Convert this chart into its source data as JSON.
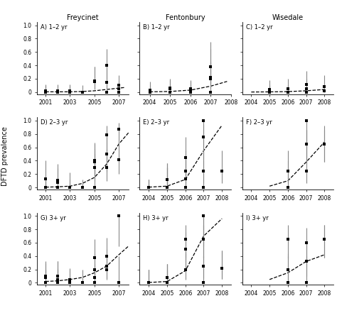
{
  "col_titles": [
    "Freycinet",
    "Fentonbury",
    "Wisedale"
  ],
  "ylabel": "DFTD prevalence",
  "subplots": {
    "A": {
      "points": [
        [
          2001,
          0.02,
          0.0,
          0.12
        ],
        [
          2001,
          0.0,
          0.0,
          0.1
        ],
        [
          2001,
          0.0,
          0.0,
          0.1
        ],
        [
          2002,
          0.02,
          0.0,
          0.12
        ],
        [
          2002,
          0.0,
          0.0,
          0.1
        ],
        [
          2003,
          0.0,
          0.0,
          0.1
        ],
        [
          2003,
          0.02,
          0.0,
          0.12
        ],
        [
          2004,
          0.0,
          0.0,
          0.1
        ],
        [
          2005,
          0.17,
          0.05,
          0.38
        ],
        [
          2005,
          0.16,
          0.04,
          0.38
        ],
        [
          2006,
          0.15,
          0.04,
          0.35
        ],
        [
          2006,
          0.0,
          0.0,
          0.1
        ],
        [
          2006,
          0.4,
          0.18,
          0.65
        ],
        [
          2007,
          0.1,
          0.02,
          0.25
        ],
        [
          2007,
          0.05,
          0.01,
          0.16
        ],
        [
          2007,
          0.0,
          0.0,
          0.1
        ]
      ],
      "fit_x": [
        2001,
        2002,
        2003,
        2004,
        2005,
        2006,
        2007,
        2007.5
      ],
      "fit_y": [
        0.005,
        0.005,
        0.005,
        0.01,
        0.02,
        0.04,
        0.06,
        0.07
      ],
      "xlim": [
        2000.3,
        2007.8
      ],
      "xticks": [
        2001,
        2003,
        2005,
        2007
      ],
      "xticklabels": [
        "2001",
        "2003",
        "2005",
        "2007"
      ]
    },
    "B": {
      "points": [
        [
          2004,
          0.0,
          0.0,
          0.1
        ],
        [
          2004,
          0.03,
          0.0,
          0.16
        ],
        [
          2005,
          0.0,
          0.0,
          0.1
        ],
        [
          2005,
          0.06,
          0.01,
          0.2
        ],
        [
          2005,
          0.05,
          0.01,
          0.18
        ],
        [
          2005,
          0.0,
          0.0,
          0.1
        ],
        [
          2006,
          0.05,
          0.01,
          0.18
        ],
        [
          2006,
          0.04,
          0.01,
          0.16
        ],
        [
          2006,
          0.0,
          0.0,
          0.1
        ],
        [
          2007,
          0.0,
          0.0,
          0.75
        ],
        [
          2007,
          0.38,
          0.15,
          0.65
        ],
        [
          2007,
          0.2,
          0.06,
          0.44
        ],
        [
          2007,
          0.22,
          0.07,
          0.47
        ]
      ],
      "fit_x": [
        2004,
        2005,
        2006,
        2007,
        2007.8
      ],
      "fit_y": [
        0.005,
        0.01,
        0.03,
        0.09,
        0.16
      ],
      "xlim": [
        2003.5,
        2008.0
      ],
      "xticks": [
        2004,
        2005,
        2006,
        2007,
        2008
      ],
      "xticklabels": [
        "2004",
        "2005",
        "2006",
        "2007",
        "2008"
      ]
    },
    "C": {
      "points": [
        [
          2005,
          0.0,
          0.0,
          0.1
        ],
        [
          2005,
          0.04,
          0.0,
          0.18
        ],
        [
          2005,
          0.0,
          0.0,
          0.1
        ],
        [
          2006,
          0.0,
          0.0,
          0.1
        ],
        [
          2006,
          0.05,
          0.01,
          0.2
        ],
        [
          2006,
          0.0,
          0.0,
          0.1
        ],
        [
          2007,
          0.05,
          0.01,
          0.2
        ],
        [
          2007,
          0.12,
          0.02,
          0.32
        ],
        [
          2007,
          0.0,
          0.0,
          0.1
        ],
        [
          2008,
          0.08,
          0.02,
          0.25
        ],
        [
          2008,
          0.02,
          0.0,
          0.12
        ]
      ],
      "fit_x": [
        2004,
        2005,
        2006,
        2007,
        2008
      ],
      "fit_y": [
        0.002,
        0.004,
        0.008,
        0.02,
        0.04
      ],
      "xlim": [
        2003.5,
        2008.5
      ],
      "xticks": [
        2004,
        2005,
        2006,
        2007,
        2008
      ],
      "xticklabels": [
        "2004",
        "2005",
        "2006",
        "2007",
        "2008"
      ]
    },
    "D": {
      "points": [
        [
          2001,
          0.0,
          0.0,
          0.12
        ],
        [
          2001,
          0.0,
          0.0,
          0.12
        ],
        [
          2001,
          0.0,
          0.0,
          0.12
        ],
        [
          2001,
          0.13,
          0.01,
          0.4
        ],
        [
          2002,
          0.08,
          0.01,
          0.29
        ],
        [
          2002,
          0.11,
          0.01,
          0.35
        ],
        [
          2002,
          0.0,
          0.0,
          0.12
        ],
        [
          2003,
          0.0,
          0.0,
          0.12
        ],
        [
          2003,
          0.0,
          0.0,
          0.22
        ],
        [
          2004,
          0.0,
          0.0,
          0.12
        ],
        [
          2005,
          0.38,
          0.15,
          0.65
        ],
        [
          2005,
          0.4,
          0.17,
          0.67
        ],
        [
          2005,
          0.3,
          0.1,
          0.57
        ],
        [
          2005,
          0.0,
          0.0,
          0.5
        ],
        [
          2006,
          0.5,
          0.24,
          0.76
        ],
        [
          2006,
          0.79,
          0.55,
          0.93
        ],
        [
          2006,
          0.3,
          0.1,
          0.57
        ],
        [
          2007,
          0.87,
          0.65,
          0.97
        ],
        [
          2007,
          0.42,
          0.2,
          0.68
        ]
      ],
      "fit_x": [
        2001,
        2002,
        2003,
        2004,
        2005,
        2006,
        2007,
        2007.8
      ],
      "fit_y": [
        0.005,
        0.01,
        0.02,
        0.06,
        0.15,
        0.35,
        0.65,
        0.82
      ],
      "xlim": [
        2000.3,
        2007.8
      ],
      "xticks": [
        2001,
        2003,
        2005,
        2007
      ],
      "xticklabels": [
        "2001",
        "2003",
        "2005",
        "2007"
      ]
    },
    "E": {
      "points": [
        [
          2004,
          0.0,
          0.0,
          0.12
        ],
        [
          2004,
          0.0,
          0.0,
          0.12
        ],
        [
          2004,
          0.0,
          0.0,
          0.12
        ],
        [
          2005,
          0.0,
          0.0,
          0.3
        ],
        [
          2005,
          0.0,
          0.0,
          0.3
        ],
        [
          2005,
          0.12,
          0.01,
          0.36
        ],
        [
          2005,
          0.12,
          0.01,
          0.36
        ],
        [
          2006,
          0.45,
          0.18,
          0.76
        ],
        [
          2006,
          0.13,
          0.01,
          0.44
        ],
        [
          2006,
          0.25,
          0.07,
          0.55
        ],
        [
          2006,
          0.0,
          0.0,
          0.4
        ],
        [
          2007,
          0.75,
          0.42,
          0.95
        ],
        [
          2007,
          1.0,
          0.55,
          1.0
        ],
        [
          2007,
          0.25,
          0.07,
          0.55
        ],
        [
          2007,
          0.0,
          0.0,
          0.4
        ],
        [
          2008,
          0.25,
          0.07,
          0.55
        ]
      ],
      "fit_x": [
        2004,
        2005,
        2006,
        2007,
        2008
      ],
      "fit_y": [
        0.005,
        0.02,
        0.12,
        0.55,
        0.93
      ],
      "xlim": [
        2003.5,
        2008.5
      ],
      "xticks": [
        2004,
        2005,
        2006,
        2007,
        2008
      ],
      "xticklabels": [
        "2004",
        "2005",
        "2006",
        "2007",
        "2008"
      ]
    },
    "F": {
      "points": [
        [
          2006,
          0.25,
          0.07,
          0.55
        ],
        [
          2006,
          0.0,
          0.0,
          0.4
        ],
        [
          2007,
          0.65,
          0.38,
          0.86
        ],
        [
          2007,
          1.0,
          0.55,
          1.0
        ],
        [
          2007,
          0.65,
          0.38,
          0.86
        ],
        [
          2007,
          0.25,
          0.07,
          0.55
        ],
        [
          2008,
          0.65,
          0.38,
          0.86
        ],
        [
          2008,
          0.65,
          0.38,
          0.92
        ]
      ],
      "fit_x": [
        2005,
        2006,
        2007,
        2008
      ],
      "fit_y": [
        0.02,
        0.1,
        0.38,
        0.68
      ],
      "xlim": [
        2003.5,
        2008.5
      ],
      "xticks": [
        2004,
        2005,
        2006,
        2007,
        2008
      ],
      "xticklabels": [
        "2004",
        "2005",
        "2006",
        "2007",
        "2008"
      ]
    },
    "G": {
      "points": [
        [
          2001,
          0.1,
          0.01,
          0.32
        ],
        [
          2001,
          0.08,
          0.01,
          0.29
        ],
        [
          2001,
          0.0,
          0.0,
          0.2
        ],
        [
          2001,
          0.0,
          0.0,
          0.2
        ],
        [
          2002,
          0.1,
          0.01,
          0.32
        ],
        [
          2002,
          0.1,
          0.01,
          0.32
        ],
        [
          2002,
          0.05,
          0.01,
          0.22
        ],
        [
          2002,
          0.0,
          0.0,
          0.2
        ],
        [
          2003,
          0.05,
          0.01,
          0.22
        ],
        [
          2003,
          0.0,
          0.0,
          0.2
        ],
        [
          2004,
          0.0,
          0.0,
          0.2
        ],
        [
          2005,
          0.38,
          0.15,
          0.65
        ],
        [
          2005,
          0.2,
          0.05,
          0.44
        ],
        [
          2005,
          0.08,
          0.01,
          0.28
        ],
        [
          2005,
          0.0,
          0.0,
          0.2
        ],
        [
          2006,
          0.2,
          0.05,
          0.44
        ],
        [
          2006,
          0.25,
          0.07,
          0.5
        ],
        [
          2006,
          0.4,
          0.17,
          0.67
        ],
        [
          2007,
          1.0,
          0.55,
          1.0
        ],
        [
          2007,
          0.0,
          0.0,
          0.4
        ]
      ],
      "fit_x": [
        2001,
        2002,
        2003,
        2004,
        2005,
        2006,
        2007,
        2007.8
      ],
      "fit_y": [
        0.02,
        0.03,
        0.05,
        0.08,
        0.15,
        0.25,
        0.42,
        0.55
      ],
      "xlim": [
        2000.3,
        2007.8
      ],
      "xticks": [
        2001,
        2003,
        2005,
        2007
      ],
      "xticklabels": [
        "2001",
        "2003",
        "2005",
        "2007"
      ]
    },
    "H": {
      "points": [
        [
          2004,
          0.0,
          0.0,
          0.2
        ],
        [
          2004,
          0.0,
          0.0,
          0.2
        ],
        [
          2004,
          0.0,
          0.0,
          0.2
        ],
        [
          2005,
          0.08,
          0.01,
          0.28
        ],
        [
          2005,
          0.08,
          0.01,
          0.28
        ],
        [
          2005,
          0.08,
          0.01,
          0.28
        ],
        [
          2005,
          0.0,
          0.0,
          0.2
        ],
        [
          2006,
          0.65,
          0.38,
          0.86
        ],
        [
          2006,
          0.2,
          0.05,
          0.44
        ],
        [
          2006,
          0.5,
          0.22,
          0.76
        ],
        [
          2007,
          0.65,
          0.38,
          0.86
        ],
        [
          2007,
          1.0,
          0.55,
          1.0
        ],
        [
          2007,
          0.25,
          0.07,
          0.55
        ],
        [
          2007,
          1.0,
          0.55,
          1.0
        ],
        [
          2007,
          0.0,
          0.0,
          0.4
        ],
        [
          2008,
          0.22,
          0.06,
          0.48
        ],
        [
          2008,
          0.22,
          0.06,
          0.48
        ]
      ],
      "fit_x": [
        2004,
        2005,
        2006,
        2007,
        2008
      ],
      "fit_y": [
        0.005,
        0.02,
        0.18,
        0.7,
        0.96
      ],
      "xlim": [
        2003.5,
        2008.5
      ],
      "xticks": [
        2004,
        2005,
        2006,
        2007,
        2008
      ],
      "xticklabels": [
        "2004",
        "2005",
        "2006",
        "2007",
        "2008"
      ]
    },
    "I": {
      "points": [
        [
          2006,
          0.65,
          0.38,
          0.86
        ],
        [
          2006,
          0.2,
          0.05,
          0.44
        ],
        [
          2006,
          0.0,
          0.0,
          0.4
        ],
        [
          2007,
          0.6,
          0.33,
          0.82
        ],
        [
          2007,
          0.32,
          0.1,
          0.61
        ],
        [
          2007,
          0.0,
          0.0,
          0.4
        ],
        [
          2008,
          0.65,
          0.38,
          0.86
        ],
        [
          2008,
          0.65,
          0.38,
          0.86
        ]
      ],
      "fit_x": [
        2005,
        2006,
        2007,
        2008
      ],
      "fit_y": [
        0.05,
        0.15,
        0.32,
        0.42
      ],
      "xlim": [
        2003.5,
        2008.5
      ],
      "xticks": [
        2004,
        2005,
        2006,
        2007,
        2008
      ],
      "xticklabels": [
        "2004",
        "2005",
        "2006",
        "2007",
        "2008"
      ]
    }
  }
}
